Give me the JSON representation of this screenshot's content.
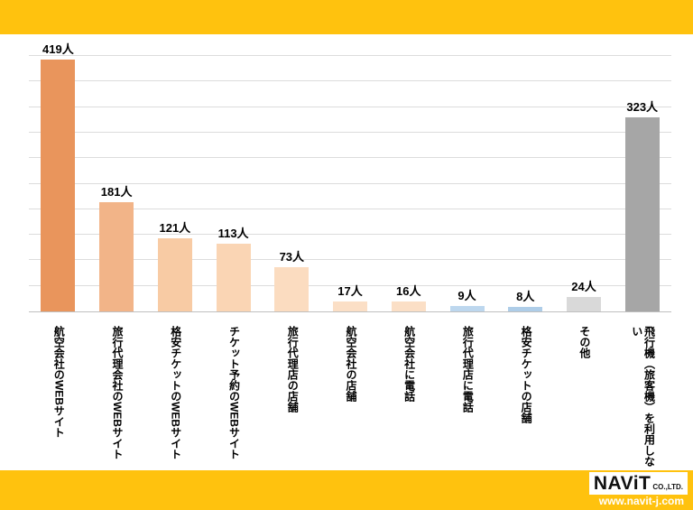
{
  "top_band": {
    "color": "#FFC20E"
  },
  "bottom_band": {
    "color": "#FFC20E"
  },
  "footer": {
    "logo_main": "NAViT",
    "logo_suffix": "CO.,LTD.",
    "url": "www.navit-j.com"
  },
  "chart_data": {
    "type": "bar",
    "title": "",
    "xlabel": "",
    "ylabel": "",
    "legend": "none",
    "grid": true,
    "ylim": [
      0,
      425
    ],
    "gridline_intervals": 10,
    "value_suffix": "人",
    "categories": [
      "航空会社のWEBサイト",
      "旅行代理会社のWEBサイト",
      "格安チケットのWEBサイト",
      "チケット予約のWEBサイト",
      "旅行代理店の店舗",
      "航空会社の店舗",
      "航空会社に電話",
      "旅行代理店に電話",
      "格安チケットの店舗",
      "その他",
      "飛行機（旅客機）を利用しない"
    ],
    "values": [
      419,
      181,
      121,
      113,
      73,
      17,
      16,
      9,
      8,
      24,
      323
    ],
    "value_labels": [
      "419人",
      "181人",
      "121人",
      "113人",
      "73人",
      "17人",
      "16人",
      "9人",
      "8人",
      "24人",
      "323人"
    ],
    "bar_colors": [
      "#E9955C",
      "#F2B488",
      "#F8CBA4",
      "#FAD5B4",
      "#FBDCC0",
      "#FBDFC6",
      "#FBDFC6",
      "#BDD7EE",
      "#AECDE8",
      "#D9D9D9",
      "#A6A6A6"
    ],
    "axis_color": "#BFBFBF",
    "gridline_color": "#DCDCDC"
  }
}
